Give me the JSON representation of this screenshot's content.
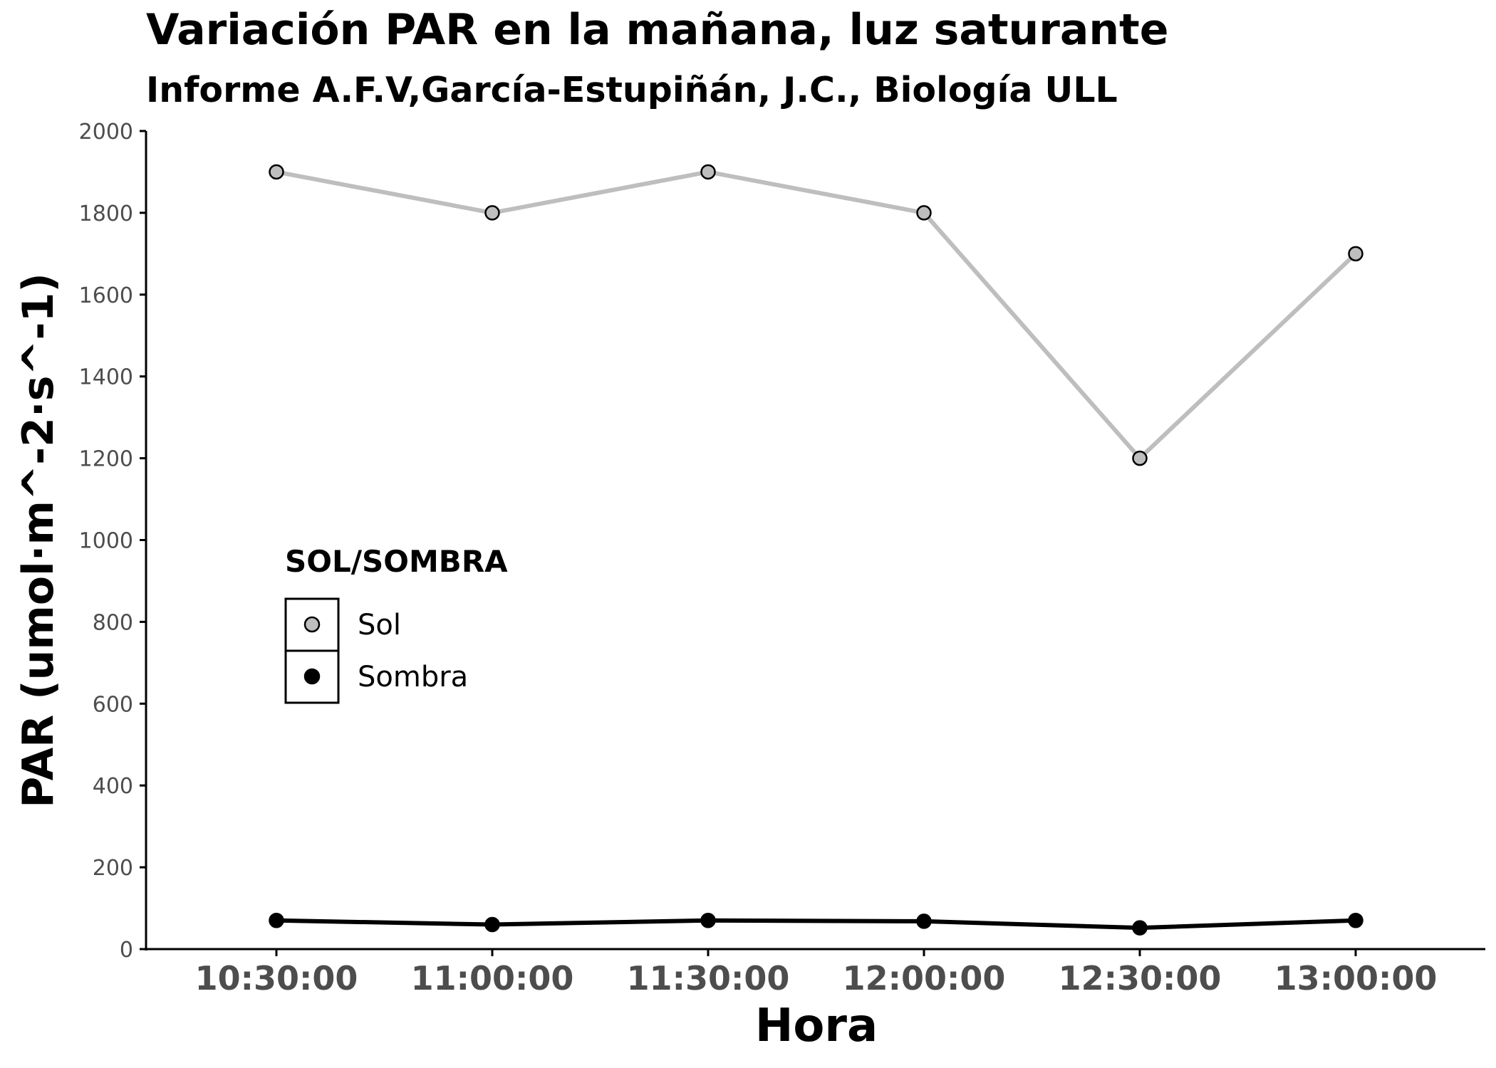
{
  "chart_data": {
    "type": "line",
    "title": "Variación PAR en la mañana, luz saturante",
    "subtitle": "Informe A.F.V,García-Estupiñán, J.C., Biología ULL",
    "xlabel": "Hora",
    "ylabel": "PAR (umol·m^-2·s^-1)",
    "categories": [
      "10:30:00",
      "11:00:00",
      "11:30:00",
      "12:00:00",
      "12:30:00",
      "13:00:00"
    ],
    "ylim": [
      0,
      2000
    ],
    "yticks": [
      "0",
      "200",
      "400",
      "600",
      "800",
      "1000",
      "1200",
      "1400",
      "1600",
      "1800",
      "2000"
    ],
    "grid": false,
    "legend": {
      "title": "SOL/SOMBRA",
      "placement": "inside-left"
    },
    "series": [
      {
        "name": "Sol",
        "color": "#bebebe",
        "values": [
          1900,
          1800,
          1900,
          1800,
          1200,
          1700
        ]
      },
      {
        "name": "Sombra",
        "color": "#000000",
        "values": [
          70,
          60,
          70,
          68,
          52,
          70
        ]
      }
    ]
  }
}
